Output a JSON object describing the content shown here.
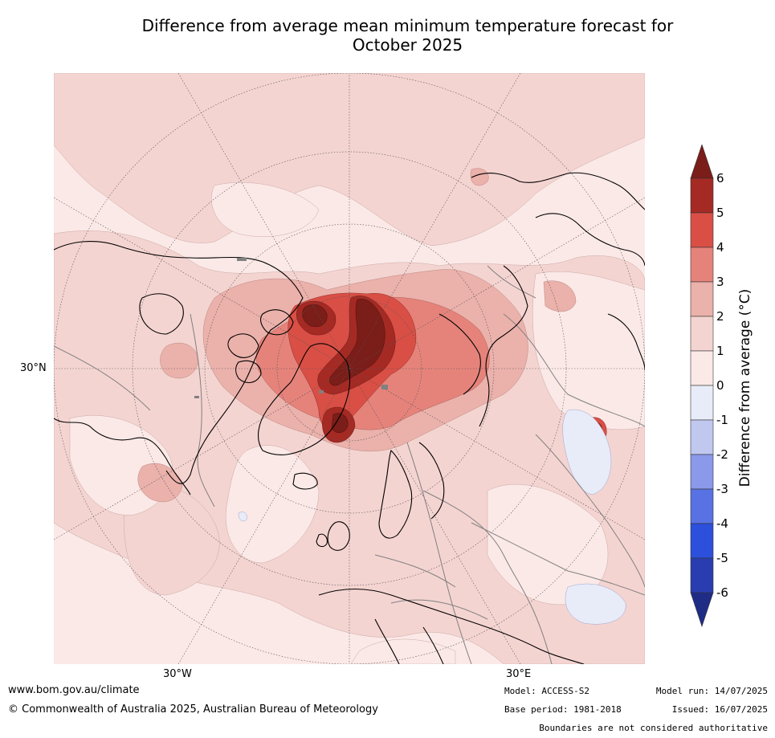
{
  "title_line1": "Difference from average mean minimum temperature forecast for",
  "title_line2": "October 2025",
  "map": {
    "lat_label": "30°N",
    "lon_label_west": "30°W",
    "lon_label_east": "30°E",
    "colors": {
      "ocean_bg": "#fbe9e7",
      "anom_0_1": "#fbe9e7",
      "anom_1_2": "#f4d4d1",
      "anom_2_3": "#ebb1ab",
      "anom_3_4": "#e5837b",
      "anom_4_5": "#d94f45",
      "anom_5_6": "#a52a24",
      "anom_gt6": "#7b1d18",
      "neg_0_1": "#e8ebf8"
    }
  },
  "colorbar": {
    "title": "Difference from average (°C)",
    "ticks": [
      "6",
      "5",
      "4",
      "3",
      "2",
      "1",
      "0",
      "-1",
      "-2",
      "-3",
      "-4",
      "-5",
      "-6"
    ],
    "colors": [
      "#7b1d18",
      "#a52a24",
      "#d94f45",
      "#e5837b",
      "#ebb1ab",
      "#f4d4d1",
      "#fbe9e7",
      "#e8ebf8",
      "#c1c8f0",
      "#8a99ea",
      "#5872e4",
      "#2c4fdc",
      "#2a3db0",
      "#1f2c86"
    ]
  },
  "footer": {
    "website": "www.bom.gov.au/climate",
    "copyright": "© Commonwealth of Australia 2025, Australian Bureau of Meteorology",
    "model": "Model: ACCESS-S2",
    "base_period": "Base period: 1981-2018",
    "model_run": "Model run: 14/07/2025",
    "issued": "Issued: 16/07/2025",
    "disclaimer": "Boundaries are not considered authoritative"
  }
}
